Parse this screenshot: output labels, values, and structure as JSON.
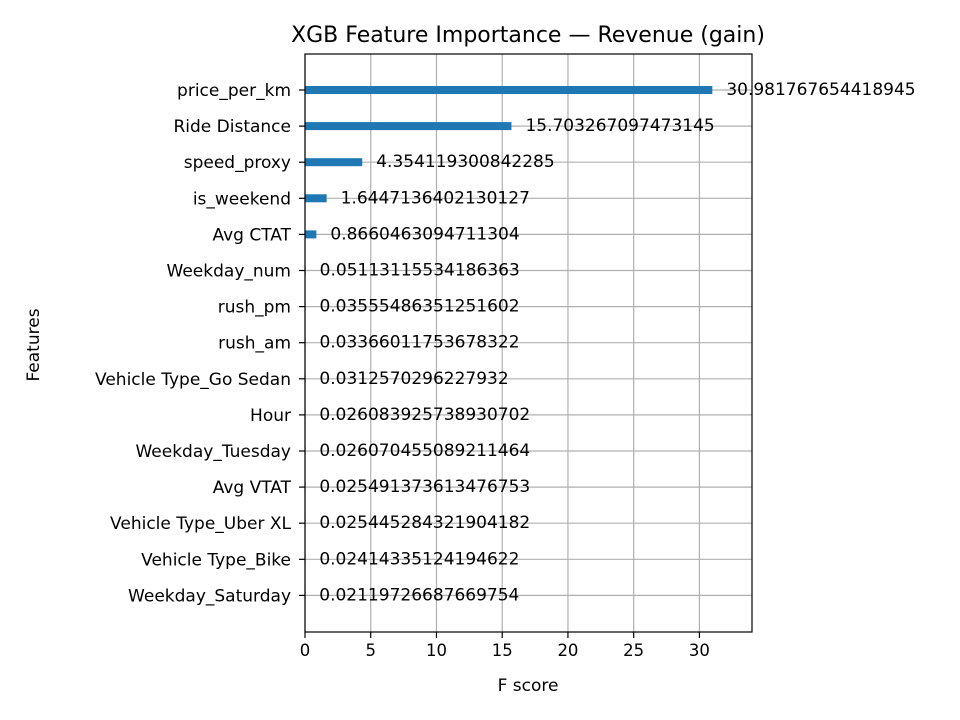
{
  "chart_data": {
    "type": "bar",
    "orientation": "horizontal",
    "title": "XGB Feature Importance — Revenue (gain)",
    "xlabel": "F score",
    "ylabel": "Features",
    "xlim": [
      0,
      34
    ],
    "xticks": [
      0,
      5,
      10,
      15,
      20,
      25,
      30
    ],
    "grid": true,
    "bar_color": "#1f77b4",
    "categories": [
      "price_per_km",
      "Ride Distance",
      "speed_proxy",
      "is_weekend",
      "Avg CTAT",
      "Weekday_num",
      "rush_pm",
      "rush_am",
      "Vehicle Type_Go Sedan",
      "Hour",
      "Weekday_Tuesday",
      "Avg VTAT",
      "Vehicle Type_Uber XL",
      "Vehicle Type_Bike",
      "Weekday_Saturday"
    ],
    "values": [
      30.981767654418945,
      15.703267097473145,
      4.354119300842285,
      1.6447136402130127,
      0.8660463094711304,
      0.05113115534186363,
      0.03555486351251602,
      0.03366011753678322,
      0.0312570296227932,
      0.026083925738930702,
      0.026070455089211464,
      0.025491373613476753,
      0.025445284321904182,
      0.02414335124194622,
      0.02119726687669754
    ],
    "value_labels": [
      "30.981767654418945",
      "15.703267097473145",
      "4.354119300842285",
      "1.6447136402130127",
      "0.8660463094711304",
      "0.05113115534186363",
      "0.03555486351251602",
      "0.03366011753678322",
      "0.0312570296227932",
      "0.026083925738930702",
      "0.026070455089211464",
      "0.025491373613476753",
      "0.025445284321904182",
      "0.02414335124194622",
      "0.02119726687669754"
    ]
  }
}
